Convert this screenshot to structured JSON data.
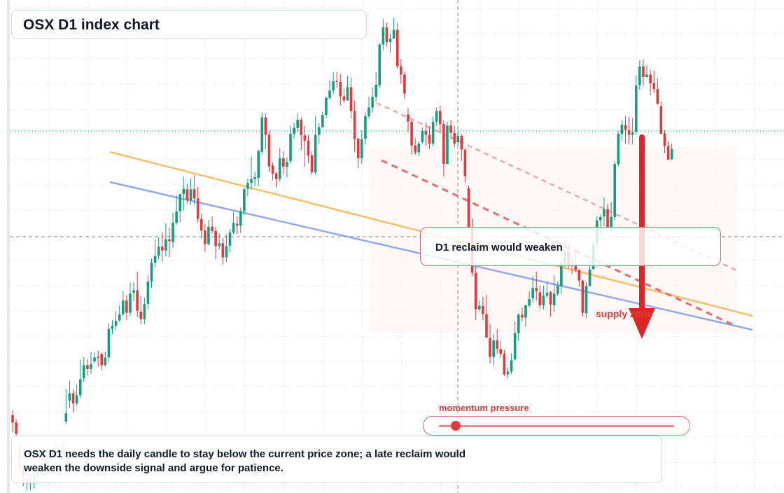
{
  "title": "OSX D1 index chart",
  "chart_data": {
    "type": "candlestick",
    "title": "OSX D1 index chart",
    "xlabel": "",
    "ylabel": "",
    "ylim": [
      0,
      100
    ],
    "grid": true,
    "candles": [
      [
        16.0,
        14.5,
        17.0,
        12.5
      ],
      [
        14.5,
        12.2,
        15.2,
        11.4
      ],
      [
        9.6,
        5.3,
        10.1,
        4.6
      ],
      [
        5.3,
        2.0,
        5.9,
        1.4
      ],
      [
        2.0,
        3.2,
        3.6,
        0.5
      ],
      [
        3.2,
        2.0,
        3.8,
        0.6
      ],
      [
        2.0,
        3.4,
        4.0,
        0.9
      ],
      [
        3.4,
        4.2,
        5.1,
        2.8
      ],
      [
        4.2,
        5.1,
        5.8,
        3.6
      ],
      [
        5.1,
        4.6,
        5.7,
        3.1
      ],
      [
        4.6,
        7.4,
        8.0,
        3.8
      ],
      [
        7.4,
        7.0,
        8.4,
        6.0
      ],
      [
        7.0,
        8.8,
        10.4,
        6.3
      ],
      [
        8.8,
        8.2,
        9.9,
        7.1
      ],
      [
        8.2,
        10.3,
        11.3,
        7.8
      ],
      [
        14.7,
        16.4,
        21.4,
        14.2
      ],
      [
        19.0,
        20.5,
        23.1,
        17.5
      ],
      [
        20.5,
        18.4,
        21.3,
        16.6
      ],
      [
        18.4,
        20.1,
        22.3,
        17.9
      ],
      [
        20.1,
        23.4,
        27.4,
        19.5
      ],
      [
        23.6,
        26.3,
        28.0,
        22.8
      ],
      [
        26.3,
        25.5,
        27.6,
        24.2
      ],
      [
        25.5,
        26.5,
        29.0,
        24.5
      ],
      [
        27.1,
        27.9,
        28.9,
        26.6
      ],
      [
        28.0,
        27.8,
        29.3,
        26.0
      ],
      [
        28.6,
        26.3,
        28.9,
        25.2
      ],
      [
        26.3,
        27.9,
        29.1,
        26.0
      ],
      [
        27.9,
        33.8,
        34.9,
        26.9
      ],
      [
        33.8,
        34.4,
        35.6,
        32.7
      ],
      [
        34.4,
        35.4,
        37.4,
        33.6
      ],
      [
        35.5,
        36.8,
        38.6,
        35.2
      ],
      [
        36.8,
        39.6,
        41.6,
        36.4
      ],
      [
        39.6,
        37.1,
        40.7,
        35.6
      ],
      [
        37.1,
        41.0,
        43.3,
        36.4
      ],
      [
        41.2,
        41.7,
        43.3,
        39.5
      ],
      [
        41.7,
        37.5,
        45.5,
        36.2
      ],
      [
        37.3,
        35.8,
        40.5,
        34.7
      ],
      [
        35.8,
        38.9,
        40.2,
        34.7
      ],
      [
        38.9,
        43.5,
        44.9,
        37.8
      ],
      [
        43.5,
        47.4,
        48.2,
        42.2
      ],
      [
        47.4,
        48.8,
        52.1,
        46.4
      ],
      [
        48.8,
        50.7,
        52.6,
        48.1
      ],
      [
        50.7,
        49.9,
        53.7,
        47.6
      ],
      [
        49.9,
        52.2,
        55.5,
        48.7
      ],
      [
        52.2,
        51.8,
        54.6,
        48.5
      ],
      [
        51.6,
        55.6,
        57.7,
        50.4
      ],
      [
        55.6,
        57.9,
        61.3,
        55.2
      ],
      [
        58.0,
        61.5,
        61.6,
        55.7
      ],
      [
        61.5,
        62.6,
        65.1,
        58.1
      ],
      [
        62.5,
        60.2,
        63.6,
        59.5
      ],
      [
        60.2,
        62.5,
        64.7,
        59.3
      ],
      [
        62.5,
        60.6,
        65.4,
        59.2
      ],
      [
        60.6,
        56.4,
        63.0,
        55.7
      ],
      [
        56.4,
        54.0,
        57.6,
        52.4
      ],
      [
        54.0,
        51.2,
        55.3,
        49.6
      ],
      [
        51.2,
        54.8,
        56.2,
        50.9
      ],
      [
        54.8,
        53.9,
        56.9,
        53.4
      ],
      [
        53.9,
        50.8,
        54.8,
        48.1
      ],
      [
        50.8,
        51.4,
        53.4,
        50.1
      ],
      [
        51.4,
        48.5,
        52.5,
        47.0
      ],
      [
        48.5,
        50.8,
        53.2,
        47.5
      ],
      [
        50.9,
        53.6,
        54.3,
        49.5
      ],
      [
        53.6,
        55.6,
        57.8,
        53.3
      ],
      [
        55.4,
        55.0,
        56.9,
        53.3
      ],
      [
        55.0,
        58.0,
        58.7,
        53.5
      ],
      [
        58.0,
        62.5,
        62.8,
        57.2
      ],
      [
        62.6,
        63.8,
        64.7,
        61.0
      ],
      [
        63.8,
        64.6,
        69.2,
        62.4
      ],
      [
        64.6,
        65.0,
        66.1,
        63.1
      ],
      [
        64.8,
        70.4,
        70.6,
        63.2
      ],
      [
        70.2,
        77.3,
        78.3,
        69.6
      ],
      [
        77.3,
        73.7,
        78.1,
        70.7
      ],
      [
        73.7,
        67.2,
        74.5,
        66.1
      ],
      [
        67.4,
        65.7,
        68.1,
        64.4
      ],
      [
        65.8,
        64.6,
        66.1,
        62.9
      ],
      [
        64.6,
        68.9,
        71.0,
        64.0
      ],
      [
        68.9,
        67.1,
        70.2,
        65.6
      ],
      [
        67.1,
        68.1,
        69.1,
        65.0
      ],
      [
        68.3,
        73.9,
        75.6,
        67.7
      ],
      [
        73.9,
        75.1,
        76.2,
        72.9
      ],
      [
        75.1,
        76.8,
        78.1,
        74.3
      ],
      [
        76.8,
        73.6,
        77.3,
        70.5
      ],
      [
        73.6,
        72.5,
        75.5,
        67.1
      ],
      [
        72.5,
        69.4,
        73.7,
        67.9
      ],
      [
        69.5,
        66.0,
        70.3,
        65.5
      ],
      [
        66.0,
        73.7,
        77.5,
        65.5
      ],
      [
        73.7,
        75.3,
        76.1,
        71.8
      ],
      [
        75.3,
        77.8,
        78.5,
        75.1
      ],
      [
        77.8,
        81.3,
        81.6,
        77.2
      ],
      [
        81.3,
        82.8,
        84.9,
        80.9
      ],
      [
        82.8,
        84.7,
        86.6,
        82.0
      ],
      [
        84.8,
        84.6,
        86.6,
        83.4
      ],
      [
        84.6,
        81.6,
        86.2,
        79.7
      ],
      [
        81.6,
        80.8,
        83.1,
        80.3
      ],
      [
        80.8,
        83.5,
        85.8,
        80.7
      ],
      [
        83.5,
        78.6,
        85.5,
        77.1
      ],
      [
        78.6,
        72.9,
        80.8,
        70.2
      ],
      [
        72.9,
        68.9,
        73.1,
        66.8
      ],
      [
        68.9,
        72.8,
        74.6,
        67.7
      ],
      [
        72.9,
        77.5,
        78.3,
        71.7
      ],
      [
        77.5,
        79.3,
        81.5,
        77.0
      ],
      [
        79.3,
        81.5,
        83.5,
        78.3
      ],
      [
        81.5,
        84.0,
        86.6,
        80.5
      ],
      [
        83.9,
        92.3,
        92.6,
        83.4
      ],
      [
        92.3,
        95.8,
        97.5,
        91.1
      ],
      [
        95.8,
        92.8,
        96.8,
        91.8
      ],
      [
        92.8,
        93.5,
        94.6,
        90.6
      ],
      [
        93.5,
        95.3,
        97.8,
        93.4
      ],
      [
        95.3,
        87.8,
        96.7,
        87.3
      ],
      [
        87.8,
        86.1,
        89.3,
        84.2
      ],
      [
        86.1,
        82.2,
        86.8,
        81.1
      ],
      [
        77.9,
        76.4,
        79.2,
        74.2
      ],
      [
        76.4,
        71.5,
        76.8,
        69.6
      ],
      [
        71.5,
        70.1,
        73.0,
        69.6
      ],
      [
        70.1,
        71.9,
        72.4,
        69.3
      ],
      [
        72.2,
        74.5,
        75.2,
        71.8
      ],
      [
        74.5,
        73.7,
        76.2,
        71.4
      ],
      [
        73.7,
        71.9,
        75.5,
        70.8
      ],
      [
        71.9,
        76.4,
        77.4,
        71.3
      ],
      [
        76.4,
        78.6,
        79.3,
        75.5
      ],
      [
        78.6,
        75.9,
        79.7,
        73.9
      ],
      [
        75.9,
        67.7,
        76.7,
        65.1
      ],
      [
        67.7,
        75.6,
        76.4,
        67.7
      ],
      [
        75.6,
        74.1,
        76.7,
        72.8
      ],
      [
        74.1,
        71.9,
        75.6,
        71.2
      ],
      [
        72.2,
        73.5,
        74.8,
        71.5
      ],
      [
        73.5,
        70.7,
        73.9,
        68.4
      ],
      [
        70.6,
        65.2,
        70.9,
        63.9
      ],
      [
        62.7,
        54.5,
        63.3,
        54.2
      ],
      [
        54.6,
        45.3,
        56.5,
        44.6
      ],
      [
        45.3,
        37.8,
        46.8,
        35.6
      ],
      [
        37.8,
        38.5,
        39.6,
        37.5
      ],
      [
        38.5,
        36.8,
        40.4,
        35.6
      ],
      [
        36.8,
        32.0,
        40.8,
        31.8
      ],
      [
        31.9,
        28.0,
        34.8,
        26.6
      ],
      [
        28.0,
        31.4,
        32.8,
        26.1
      ],
      [
        31.4,
        29.7,
        33.7,
        28.7
      ],
      [
        29.6,
        28.6,
        31.3,
        27.8
      ],
      [
        28.6,
        24.4,
        29.5,
        24.1
      ],
      [
        24.4,
        25.0,
        25.9,
        23.6
      ],
      [
        25.0,
        27.3,
        28.7,
        24.5
      ],
      [
        27.5,
        32.9,
        35.3,
        27.2
      ],
      [
        32.9,
        36.7,
        37.0,
        31.3
      ],
      [
        36.7,
        36.1,
        38.2,
        35.3
      ],
      [
        36.1,
        38.6,
        38.8,
        34.2
      ],
      [
        38.6,
        39.9,
        41.5,
        38.2
      ],
      [
        40.1,
        42.2,
        44.7,
        39.2
      ],
      [
        42.2,
        41.5,
        45.5,
        39.6
      ],
      [
        41.3,
        38.6,
        42.7,
        37.9
      ],
      [
        38.6,
        40.6,
        42.7,
        37.8
      ],
      [
        40.6,
        41.2,
        43.5,
        40.1
      ],
      [
        41.3,
        38.8,
        41.6,
        36.3
      ],
      [
        38.6,
        41.0,
        44.8,
        37.3
      ],
      [
        41.0,
        42.6,
        43.5,
        40.6
      ],
      [
        42.6,
        47.3,
        47.8,
        40.9
      ],
      [
        47.3,
        49.5,
        50.0,
        46.5
      ],
      [
        49.5,
        46.9,
        51.2,
        46.2
      ],
      [
        46.9,
        46.8,
        48.2,
        45.1
      ],
      [
        46.9,
        45.9,
        49.4,
        45.4
      ],
      [
        45.9,
        43.7,
        46.0,
        42.5
      ],
      [
        43.7,
        37.1,
        43.9,
        36.3
      ],
      [
        37.0,
        42.6,
        43.4,
        36.0
      ],
      [
        42.6,
        46.0,
        47.8,
        42.5
      ],
      [
        46.1,
        51.3,
        51.8,
        45.8
      ],
      [
        51.3,
        56.1,
        56.9,
        50.8
      ],
      [
        56.1,
        56.8,
        57.3,
        53.0
      ],
      [
        56.9,
        58.4,
        60.8,
        54.9
      ],
      [
        58.4,
        54.4,
        59.5,
        54.2
      ],
      [
        54.5,
        56.8,
        59.8,
        53.8
      ],
      [
        56.8,
        67.7,
        68.2,
        56.1
      ],
      [
        67.7,
        73.9,
        74.5,
        67.2
      ],
      [
        73.9,
        75.8,
        76.7,
        72.5
      ],
      [
        75.7,
        74.7,
        77.6,
        71.9
      ],
      [
        74.7,
        73.7,
        77.4,
        71.7
      ],
      [
        73.7,
        74.2,
        77.2,
        71.8
      ],
      [
        74.3,
        83.8,
        86.0,
        73.7
      ],
      [
        83.9,
        87.8,
        89.1,
        82.9
      ],
      [
        87.8,
        85.6,
        89.2,
        83.8
      ],
      [
        85.6,
        86.1,
        88.0,
        85.5
      ],
      [
        86.1,
        84.3,
        87.1,
        81.8
      ],
      [
        84.3,
        83.1,
        86.9,
        82.3
      ],
      [
        83.1,
        80.1,
        85.4,
        79.9
      ],
      [
        79.6,
        73.9,
        80.5,
        73.8
      ],
      [
        74.0,
        71.4,
        74.7,
        69.9
      ],
      [
        71.4,
        68.6,
        72.3,
        68.6
      ],
      [
        68.7,
        70.8,
        71.9,
        68.5
      ]
    ],
    "annotations": {
      "callout": "D1 reclaim would weaken",
      "zone": "supply zone",
      "momentum": "momentum pressure",
      "momentum_level": 0.07
    }
  },
  "note": {
    "line1": "OSX D1 needs the daily candle to stay below the current price zone; a late reclaim would",
    "line2": "weaken the downside signal and argue for patience."
  },
  "colors": {
    "bull": "#179c7e",
    "bear": "#e0393e",
    "channel_upper": "#f5c06e",
    "channel_lower": "#93a9ef",
    "dashed_trend": "#e86b72"
  }
}
